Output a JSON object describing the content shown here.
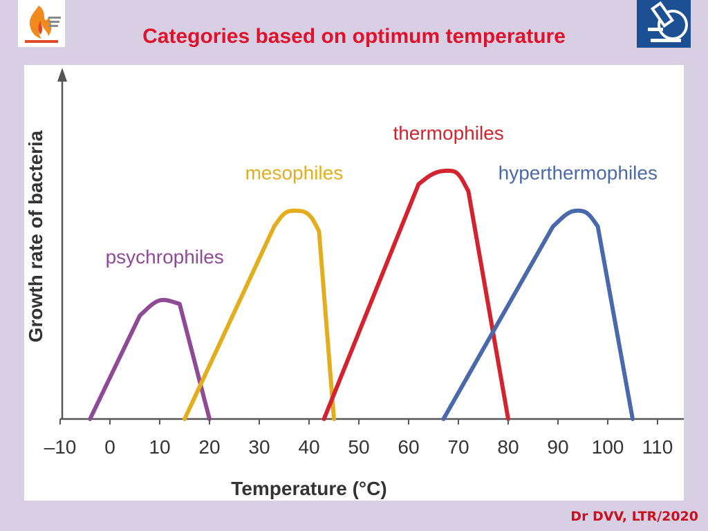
{
  "slide": {
    "title": "Categories based on optimum temperature",
    "footer": "Dr DVV, LTR/2020"
  },
  "logos": {
    "left": "flame-emblem-logo",
    "right": "microscope-logo"
  },
  "colors": {
    "background": "#d9cfe5",
    "title": "#e0112a",
    "psychrophiles": "#8e4a94",
    "mesophiles": "#e3ae1e",
    "thermophiles": "#d2232f",
    "hyperthermophiles": "#4a69aa"
  },
  "chart_data": {
    "type": "line",
    "title": "",
    "xlabel": "Temperature (°C)",
    "ylabel": "Growth rate of bacteria",
    "xlim": [
      -10,
      110
    ],
    "x_ticks": [
      -10,
      0,
      10,
      20,
      30,
      40,
      50,
      60,
      70,
      80,
      90,
      100,
      110
    ],
    "x_tick_labels": [
      "–10",
      "0",
      "10",
      "20",
      "30",
      "40",
      "50",
      "60",
      "70",
      "80",
      "90",
      "100",
      "110"
    ],
    "y_ticks": [],
    "ylim": [
      0,
      1.2
    ],
    "grid": false,
    "legend": "labels placed above each curve",
    "series": [
      {
        "name": "psychrophiles",
        "color": "#8e4a94",
        "x": [
          -4,
          6,
          9,
          11,
          14,
          20
        ],
        "y": [
          0,
          0.44,
          0.5,
          0.51,
          0.49,
          0
        ]
      },
      {
        "name": "mesophiles",
        "color": "#e3ae1e",
        "x": [
          15,
          33,
          35,
          37,
          40,
          42,
          45
        ],
        "y": [
          0,
          0.82,
          0.88,
          0.89,
          0.88,
          0.8,
          0
        ]
      },
      {
        "name": "thermophiles",
        "color": "#d2232f",
        "x": [
          43,
          62,
          65,
          68,
          70,
          72,
          80
        ],
        "y": [
          0,
          1.0,
          1.05,
          1.06,
          1.05,
          0.97,
          0
        ]
      },
      {
        "name": "hyperthermophiles",
        "color": "#4a69aa",
        "x": [
          67,
          89,
          92,
          94,
          96,
          98,
          105
        ],
        "y": [
          0,
          0.82,
          0.88,
          0.89,
          0.88,
          0.82,
          0
        ]
      }
    ]
  }
}
